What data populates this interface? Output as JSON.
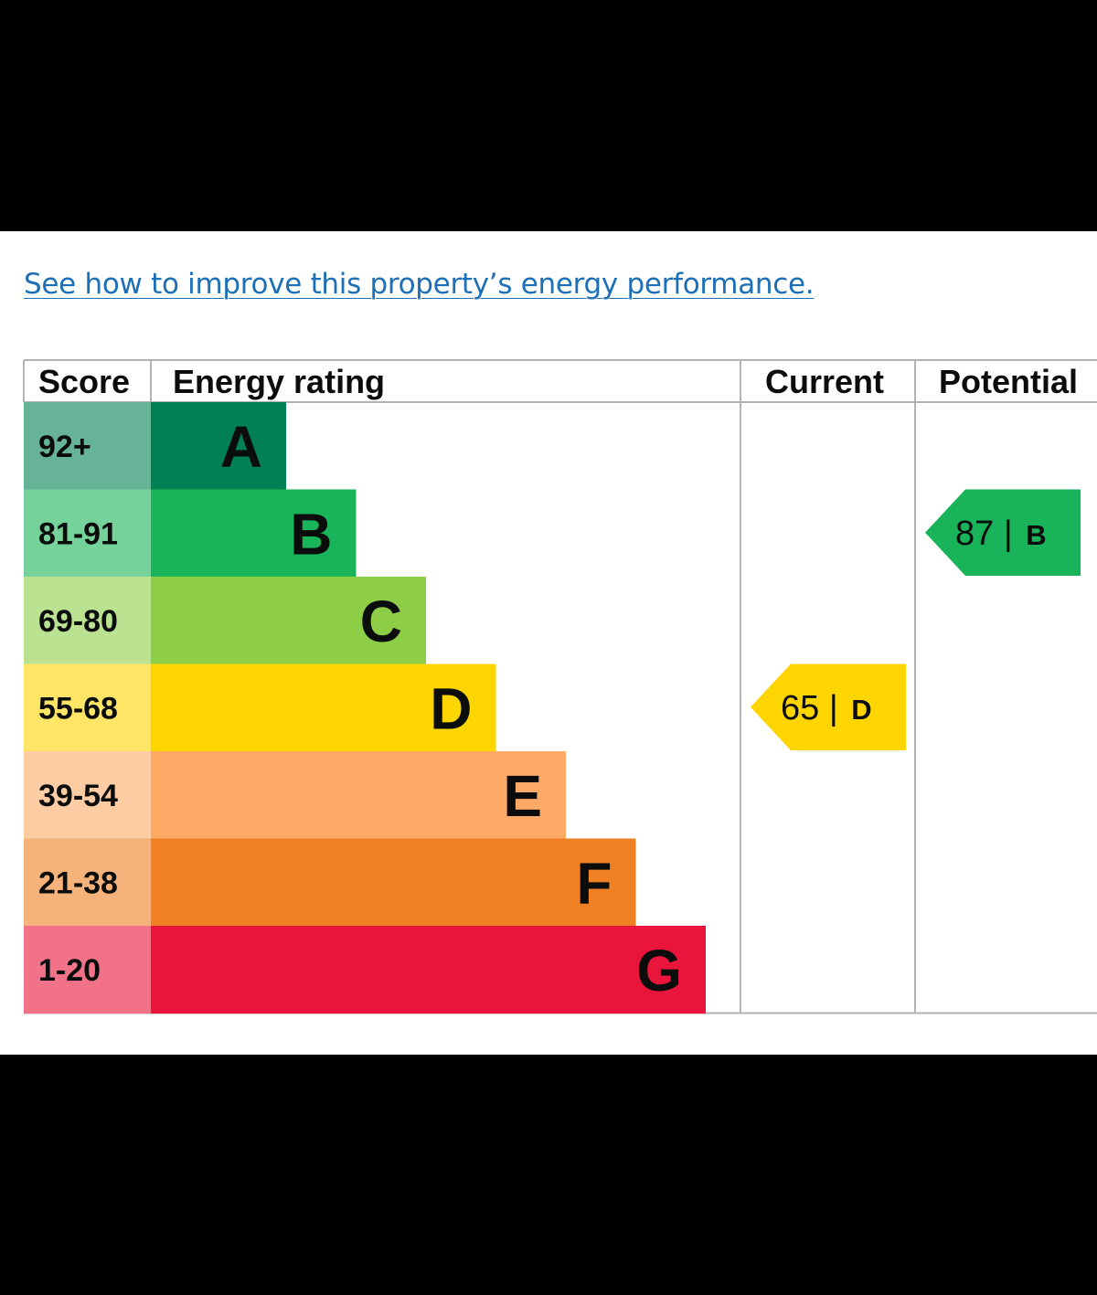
{
  "link": {
    "text": "See how to improve this property’s energy performance."
  },
  "chart_data": {
    "type": "bar",
    "title": "",
    "headers": {
      "score": "Score",
      "rating": "Energy rating",
      "current": "Current",
      "potential": "Potential"
    },
    "bands": [
      {
        "letter": "A",
        "score": "92+",
        "min": 92,
        "max": 100,
        "color": "#008054",
        "score_bg": "#66b398"
      },
      {
        "letter": "B",
        "score": "81-91",
        "min": 81,
        "max": 91,
        "color": "#19b459",
        "score_bg": "#75d29b"
      },
      {
        "letter": "C",
        "score": "69-80",
        "min": 69,
        "max": 80,
        "color": "#8dce46",
        "score_bg": "#bbe290"
      },
      {
        "letter": "D",
        "score": "55-68",
        "min": 55,
        "max": 68,
        "color": "#ffd500",
        "score_bg": "#ffe566"
      },
      {
        "letter": "E",
        "score": "39-54",
        "min": 39,
        "max": 54,
        "color": "#fcaa65",
        "score_bg": "#fdcca3"
      },
      {
        "letter": "F",
        "score": "21-38",
        "min": 21,
        "max": 38,
        "color": "#ef8023",
        "score_bg": "#f5b37b"
      },
      {
        "letter": "G",
        "score": "1-20",
        "min": 1,
        "max": 20,
        "color": "#e9153b",
        "score_bg": "#f27389"
      }
    ],
    "current": {
      "score": 65,
      "band": "D",
      "separator": "|"
    },
    "potential": {
      "score": 87,
      "band": "B",
      "separator": "|"
    },
    "colors": {
      "grid": "#b1b4b6",
      "text": "#0b0c0c",
      "link": "#1d70b8"
    }
  }
}
